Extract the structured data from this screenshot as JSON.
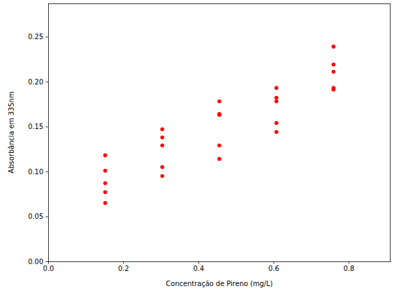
{
  "chart_data": {
    "type": "scatter",
    "x_label": "Concentração de Pireno (mg/L)",
    "y_label": "Absorbância em 335nm",
    "x": [
      0.152,
      0.152,
      0.152,
      0.152,
      0.152,
      0.304,
      0.304,
      0.304,
      0.304,
      0.304,
      0.456,
      0.456,
      0.456,
      0.456,
      0.456,
      0.608,
      0.608,
      0.608,
      0.608,
      0.608,
      0.76,
      0.76,
      0.76,
      0.76,
      0.76
    ],
    "values": [
      0.118,
      0.101,
      0.087,
      0.077,
      0.065,
      0.147,
      0.138,
      0.129,
      0.105,
      0.095,
      0.178,
      0.164,
      0.163,
      0.129,
      0.114,
      0.193,
      0.182,
      0.178,
      0.154,
      0.144,
      0.239,
      0.219,
      0.211,
      0.193,
      0.191
    ],
    "color": "#ff0000",
    "marker": "o",
    "grid": false,
    "xlim": [
      0,
      0.912
    ],
    "ylim": [
      0,
      0.287
    ],
    "xticks": [
      {
        "value": 0,
        "label": "0.0"
      },
      0.2,
      0.4,
      0.6,
      0.8
    ],
    "yticks": [
      {
        "value": 0,
        "label": "0.00"
      },
      0.05,
      {
        "value": 0.1,
        "label": "0.10"
      },
      0.15,
      {
        "value": 0.2,
        "label": "0.20"
      },
      0.25
    ]
  }
}
